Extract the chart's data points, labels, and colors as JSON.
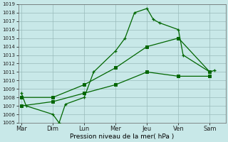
{
  "xlabel": "Pression niveau de la mer( hPa )",
  "background_color": "#c8e8e8",
  "grid_color": "#99bbbb",
  "line_color": "#006600",
  "ylim": [
    1005,
    1019
  ],
  "yticks": [
    1005,
    1006,
    1007,
    1008,
    1009,
    1010,
    1011,
    1012,
    1013,
    1014,
    1015,
    1016,
    1017,
    1018,
    1019
  ],
  "x_tick_positions": [
    0,
    1,
    2,
    3,
    4,
    5,
    6
  ],
  "x_tick_labels": [
    "Mar",
    "Dim",
    "Lun",
    "Mer",
    "Jeu",
    "Ven",
    "Sam"
  ],
  "series1_x": [
    0.0,
    0.15,
    1.0,
    1.2,
    1.4,
    2.0,
    2.3,
    3.0,
    3.3,
    3.6,
    4.0,
    4.2,
    4.4,
    5.0,
    5.15,
    6.0,
    6.15
  ],
  "series1_y": [
    1008.5,
    1007.0,
    1006.0,
    1005.0,
    1007.2,
    1008.0,
    1011.0,
    1013.5,
    1015.0,
    1018.0,
    1018.5,
    1017.2,
    1016.8,
    1016.0,
    1013.0,
    1011.0,
    1011.2
  ],
  "series2_x": [
    0.0,
    1.0,
    2.0,
    3.0,
    4.0,
    5.0,
    6.0
  ],
  "series2_y": [
    1008.0,
    1008.0,
    1009.5,
    1011.5,
    1014.0,
    1015.0,
    1011.0
  ],
  "series3_x": [
    0.0,
    1.0,
    2.0,
    3.0,
    4.0,
    5.0,
    6.0
  ],
  "series3_y": [
    1007.0,
    1007.5,
    1008.5,
    1009.5,
    1011.0,
    1010.5,
    1010.5
  ],
  "xlim": [
    -0.1,
    6.5
  ]
}
